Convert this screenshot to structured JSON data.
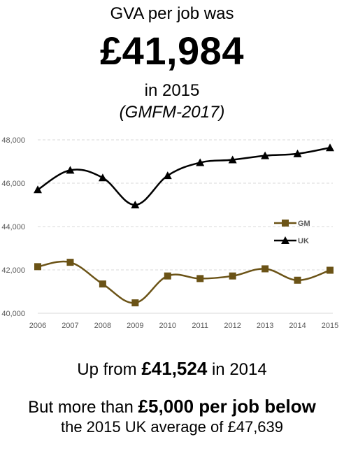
{
  "header": {
    "lead": "GVA per job was",
    "value": "£41,984",
    "year": "in 2015",
    "source": "(GMFM-2017)"
  },
  "footer": {
    "up_prefix": "Up from ",
    "up_value": "£41,524",
    "up_suffix": " in 2014",
    "below_prefix": "But more than ",
    "below_value": "£5,000 per job below",
    "below_line2": "the 2015 UK average of £47,639"
  },
  "chart_data": {
    "type": "line",
    "x": [
      "2006",
      "2007",
      "2008",
      "2009",
      "2010",
      "2011",
      "2012",
      "2013",
      "2014",
      "2015"
    ],
    "y_ticks": [
      "40,000",
      "42,000",
      "44,000",
      "46,000",
      "48,000"
    ],
    "ylim": [
      40000,
      48000
    ],
    "grid": true,
    "legend_position": "right",
    "series": [
      {
        "name": "GM",
        "color": "#6b5316",
        "marker": "square",
        "values": [
          42150,
          42350,
          41350,
          40480,
          41720,
          41600,
          41720,
          42050,
          41524,
          41984
        ]
      },
      {
        "name": "UK",
        "color": "#000000",
        "marker": "triangle",
        "values": [
          45700,
          46600,
          46250,
          45000,
          46350,
          46950,
          47080,
          47270,
          47360,
          47639
        ]
      }
    ]
  }
}
